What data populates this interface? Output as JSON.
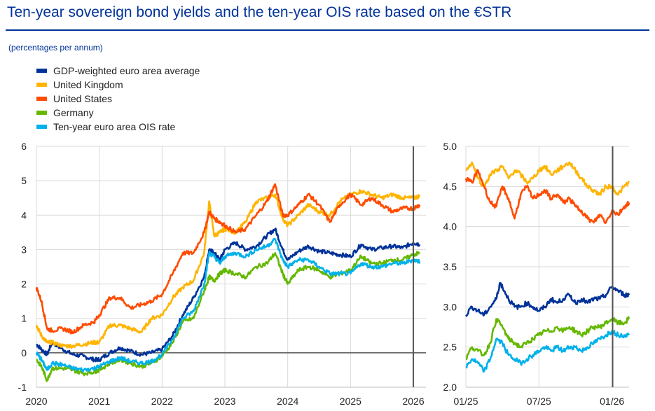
{
  "title": "Ten-year sovereign bond yields and the ten-year OIS rate based on the €STR",
  "subtitle": "(percentages per annum)",
  "colors": {
    "GDP-weighted euro area average": "#003299",
    "United Kingdom": "#FFB400",
    "United States": "#FF4B00",
    "Germany": "#65B800",
    "Ten-year euro area OIS rate": "#00B1EA"
  },
  "chart_data": [
    {
      "type": "line",
      "panel": "left",
      "x_tick_labels": [
        "2020",
        "2021",
        "2022",
        "2023",
        "2024",
        "2025",
        "2026"
      ],
      "y_tick_labels": [
        "-1",
        "0",
        "1",
        "2",
        "3",
        "4",
        "5",
        "6"
      ],
      "ylim": [
        -1,
        6
      ],
      "xlim": [
        2020.0,
        2026.2
      ],
      "vertical_marker": 2026.0,
      "series": [
        {
          "name": "GDP-weighted euro area average",
          "x": [
            2020.0,
            2020.08,
            2020.17,
            2020.25,
            2020.42,
            2020.58,
            2020.75,
            2020.92,
            2021.0,
            2021.17,
            2021.33,
            2021.5,
            2021.67,
            2021.83,
            2022.0,
            2022.17,
            2022.33,
            2022.5,
            2022.67,
            2022.75,
            2022.83,
            2022.92,
            2023.0,
            2023.17,
            2023.33,
            2023.5,
            2023.67,
            2023.8,
            2023.92,
            2024.0,
            2024.17,
            2024.33,
            2024.5,
            2024.67,
            2024.83,
            2025.0,
            2025.17,
            2025.33,
            2025.5,
            2025.67,
            2025.83,
            2026.0,
            2026.1
          ],
          "values": [
            0.25,
            0.1,
            -0.05,
            0.3,
            0.1,
            -0.05,
            -0.1,
            -0.2,
            -0.2,
            0.0,
            0.15,
            0.05,
            -0.05,
            0.0,
            0.1,
            0.5,
            1.1,
            1.6,
            2.2,
            3.0,
            2.9,
            2.7,
            3.0,
            3.2,
            3.0,
            3.1,
            3.4,
            3.6,
            3.0,
            2.7,
            2.95,
            3.1,
            2.95,
            2.9,
            2.85,
            2.8,
            3.15,
            3.0,
            3.05,
            3.1,
            3.05,
            3.2,
            3.15
          ]
        },
        {
          "name": "United Kingdom",
          "x": [
            2020.0,
            2020.08,
            2020.17,
            2020.25,
            2020.42,
            2020.58,
            2020.75,
            2020.92,
            2021.0,
            2021.17,
            2021.33,
            2021.5,
            2021.67,
            2021.83,
            2022.0,
            2022.17,
            2022.33,
            2022.5,
            2022.67,
            2022.75,
            2022.83,
            2022.92,
            2023.0,
            2023.17,
            2023.33,
            2023.5,
            2023.67,
            2023.8,
            2023.92,
            2024.0,
            2024.17,
            2024.33,
            2024.5,
            2024.67,
            2024.83,
            2025.0,
            2025.17,
            2025.33,
            2025.5,
            2025.67,
            2025.83,
            2026.0,
            2026.1
          ],
          "values": [
            0.8,
            0.5,
            0.3,
            0.3,
            0.2,
            0.2,
            0.25,
            0.3,
            0.3,
            0.8,
            0.8,
            0.7,
            0.6,
            1.0,
            1.1,
            1.6,
            1.9,
            2.1,
            2.9,
            4.4,
            3.4,
            3.5,
            3.6,
            3.5,
            3.8,
            4.4,
            4.5,
            4.6,
            3.9,
            3.7,
            4.0,
            4.3,
            4.1,
            4.0,
            4.4,
            4.6,
            4.7,
            4.6,
            4.5,
            4.6,
            4.5,
            4.5,
            4.55
          ]
        },
        {
          "name": "United States",
          "x": [
            2020.0,
            2020.08,
            2020.17,
            2020.25,
            2020.42,
            2020.58,
            2020.75,
            2020.92,
            2021.0,
            2021.17,
            2021.33,
            2021.5,
            2021.67,
            2021.83,
            2022.0,
            2022.17,
            2022.33,
            2022.5,
            2022.67,
            2022.75,
            2022.83,
            2022.92,
            2023.0,
            2023.17,
            2023.33,
            2023.5,
            2023.67,
            2023.8,
            2023.92,
            2024.0,
            2024.17,
            2024.33,
            2024.5,
            2024.67,
            2024.83,
            2025.0,
            2025.17,
            2025.33,
            2025.5,
            2025.67,
            2025.83,
            2026.0,
            2026.1
          ],
          "values": [
            1.9,
            1.5,
            0.7,
            0.65,
            0.7,
            0.6,
            0.8,
            0.9,
            1.1,
            1.6,
            1.6,
            1.3,
            1.4,
            1.5,
            1.7,
            2.3,
            2.9,
            2.9,
            3.5,
            4.1,
            3.9,
            3.8,
            3.7,
            3.5,
            3.6,
            4.0,
            4.4,
            4.9,
            4.0,
            4.0,
            4.3,
            4.6,
            4.3,
            3.8,
            4.3,
            4.6,
            4.3,
            4.5,
            4.3,
            4.1,
            4.2,
            4.2,
            4.3
          ]
        },
        {
          "name": "Germany",
          "x": [
            2020.0,
            2020.08,
            2020.17,
            2020.25,
            2020.42,
            2020.58,
            2020.75,
            2020.92,
            2021.0,
            2021.17,
            2021.33,
            2021.5,
            2021.67,
            2021.83,
            2022.0,
            2022.17,
            2022.33,
            2022.5,
            2022.67,
            2022.75,
            2022.83,
            2022.92,
            2023.0,
            2023.17,
            2023.33,
            2023.5,
            2023.67,
            2023.8,
            2023.92,
            2024.0,
            2024.17,
            2024.33,
            2024.5,
            2024.67,
            2024.83,
            2025.0,
            2025.17,
            2025.33,
            2025.5,
            2025.67,
            2025.83,
            2026.0,
            2026.1
          ],
          "values": [
            -0.2,
            -0.4,
            -0.8,
            -0.45,
            -0.45,
            -0.5,
            -0.6,
            -0.55,
            -0.5,
            -0.3,
            -0.2,
            -0.3,
            -0.4,
            -0.3,
            -0.1,
            0.3,
            0.9,
            1.0,
            1.8,
            2.2,
            2.1,
            2.3,
            2.4,
            2.3,
            2.2,
            2.5,
            2.6,
            2.9,
            2.3,
            2.0,
            2.4,
            2.5,
            2.4,
            2.2,
            2.3,
            2.4,
            2.8,
            2.6,
            2.6,
            2.7,
            2.7,
            2.85,
            2.9
          ]
        },
        {
          "name": "Ten-year euro area OIS rate",
          "x": [
            2020.0,
            2020.08,
            2020.17,
            2020.25,
            2020.42,
            2020.58,
            2020.75,
            2020.92,
            2021.0,
            2021.17,
            2021.33,
            2021.5,
            2021.67,
            2021.83,
            2022.0,
            2022.17,
            2022.33,
            2022.5,
            2022.67,
            2022.75,
            2022.83,
            2022.92,
            2023.0,
            2023.17,
            2023.33,
            2023.5,
            2023.67,
            2023.8,
            2023.92,
            2024.0,
            2024.17,
            2024.33,
            2024.5,
            2024.67,
            2024.83,
            2025.0,
            2025.17,
            2025.33,
            2025.5,
            2025.67,
            2025.83,
            2026.0,
            2026.1
          ],
          "values": [
            0.0,
            -0.2,
            -0.5,
            -0.3,
            -0.35,
            -0.45,
            -0.5,
            -0.45,
            -0.4,
            -0.25,
            -0.15,
            -0.25,
            -0.3,
            -0.25,
            -0.05,
            0.4,
            1.0,
            1.2,
            2.0,
            2.9,
            2.8,
            2.6,
            2.8,
            2.9,
            2.8,
            3.0,
            3.1,
            3.3,
            2.7,
            2.5,
            2.7,
            2.7,
            2.5,
            2.3,
            2.3,
            2.3,
            2.6,
            2.5,
            2.5,
            2.6,
            2.6,
            2.7,
            2.65
          ]
        }
      ]
    },
    {
      "type": "line",
      "panel": "right",
      "x_tick_labels": [
        "01/25",
        "07/25",
        "01/26"
      ],
      "y_tick_labels": [
        "2.0",
        "2.5",
        "3.0",
        "3.5",
        "4.0",
        "4.5",
        "5.0"
      ],
      "ylim": [
        2.0,
        5.0
      ],
      "xlim": [
        0,
        13.4
      ],
      "vertical_marker": 12.05,
      "x_unit": "months since 01/25",
      "series": [
        {
          "name": "GDP-weighted euro area average",
          "x": [
            0,
            0.5,
            1,
            1.5,
            2,
            2.5,
            2.8,
            3,
            3.5,
            4,
            4.5,
            5,
            5.5,
            6,
            6.5,
            7,
            7.5,
            8,
            8.5,
            9,
            9.5,
            10,
            10.5,
            11,
            11.5,
            12,
            12.5,
            13,
            13.4
          ],
          "values": [
            2.9,
            3.0,
            2.95,
            2.9,
            3.0,
            3.1,
            3.3,
            3.25,
            3.1,
            3.0,
            3.0,
            3.05,
            3.0,
            2.95,
            3.0,
            3.1,
            3.05,
            3.1,
            3.15,
            3.05,
            3.1,
            3.05,
            3.1,
            3.1,
            3.15,
            3.25,
            3.2,
            3.15,
            3.15
          ]
        },
        {
          "name": "United Kingdom",
          "x": [
            0,
            0.5,
            1,
            1.5,
            2,
            2.5,
            3,
            3.5,
            4,
            4.5,
            5,
            5.5,
            6,
            6.5,
            7,
            7.5,
            8,
            8.5,
            9,
            9.5,
            10,
            10.5,
            11,
            11.5,
            12,
            12.5,
            13,
            13.4
          ],
          "values": [
            4.7,
            4.8,
            4.6,
            4.5,
            4.65,
            4.7,
            4.75,
            4.6,
            4.7,
            4.65,
            4.55,
            4.6,
            4.7,
            4.75,
            4.65,
            4.7,
            4.75,
            4.8,
            4.7,
            4.6,
            4.5,
            4.45,
            4.4,
            4.5,
            4.5,
            4.4,
            4.5,
            4.55
          ]
        },
        {
          "name": "United States",
          "x": [
            0,
            0.5,
            1,
            1.5,
            2,
            2.5,
            3,
            3.5,
            4,
            4.5,
            5,
            5.5,
            6,
            6.5,
            7,
            7.5,
            8,
            8.5,
            9,
            9.5,
            10,
            10.5,
            11,
            11.5,
            12,
            12.5,
            13,
            13.4
          ],
          "values": [
            4.6,
            4.55,
            4.7,
            4.5,
            4.3,
            4.25,
            4.5,
            4.35,
            4.1,
            4.4,
            4.5,
            4.35,
            4.4,
            4.45,
            4.35,
            4.4,
            4.3,
            4.35,
            4.25,
            4.2,
            4.1,
            4.05,
            4.15,
            4.05,
            4.2,
            4.15,
            4.25,
            4.3
          ]
        },
        {
          "name": "Germany",
          "x": [
            0,
            0.5,
            1,
            1.5,
            2,
            2.5,
            3,
            3.5,
            4,
            4.5,
            5,
            5.5,
            6,
            6.5,
            7,
            7.5,
            8,
            8.5,
            9,
            9.5,
            10,
            10.5,
            11,
            11.5,
            12,
            12.5,
            13,
            13.4
          ],
          "values": [
            2.35,
            2.5,
            2.45,
            2.4,
            2.55,
            2.85,
            2.75,
            2.6,
            2.55,
            2.5,
            2.55,
            2.6,
            2.65,
            2.7,
            2.7,
            2.75,
            2.7,
            2.75,
            2.7,
            2.65,
            2.7,
            2.75,
            2.75,
            2.8,
            2.85,
            2.8,
            2.8,
            2.85
          ]
        },
        {
          "name": "Ten-year euro area OIS rate",
          "x": [
            0,
            0.5,
            1,
            1.5,
            2,
            2.5,
            3,
            3.5,
            4,
            4.5,
            5,
            5.5,
            6,
            6.5,
            7,
            7.5,
            8,
            8.5,
            9,
            9.5,
            10,
            10.5,
            11,
            11.5,
            12,
            12.5,
            13,
            13.4
          ],
          "values": [
            2.25,
            2.35,
            2.3,
            2.2,
            2.35,
            2.6,
            2.55,
            2.4,
            2.35,
            2.3,
            2.35,
            2.4,
            2.45,
            2.5,
            2.45,
            2.5,
            2.45,
            2.5,
            2.5,
            2.45,
            2.5,
            2.55,
            2.6,
            2.65,
            2.7,
            2.65,
            2.65,
            2.65
          ]
        }
      ]
    }
  ]
}
